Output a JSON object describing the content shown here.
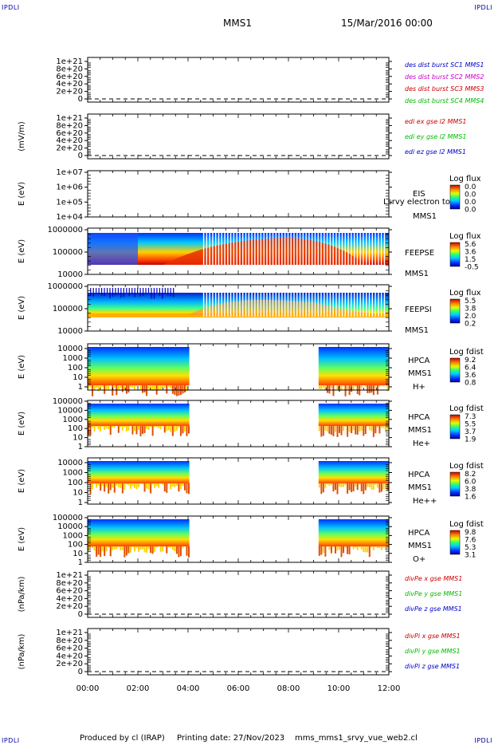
{
  "corner_tag": "IPDLI",
  "header": {
    "spacecraft": "MMS1",
    "datetime": "15/Mar/2016 00:00"
  },
  "footer": {
    "produced_by": "Produced by cl (IRAP)",
    "printing_date": "Printing date: 27/Nov/2023",
    "script_name": "mms_mms1_srvy_vue_web2.cl"
  },
  "chart_data": [
    {
      "type": "line",
      "panel_id": "des-dist-burst",
      "ylabel": "",
      "ylim": [
        0,
        1e+21
      ],
      "tick_labels": [
        "0",
        "2e+20",
        "4e+20",
        "6e+20",
        "8e+20",
        "1e+21"
      ],
      "dashed_baseline": 0,
      "series": [
        {
          "name": "des dist burst SC1 MMS1",
          "color": "#0000cc",
          "values": []
        },
        {
          "name": "des dist burst SC2 MMS2",
          "color": "#cc00cc",
          "values": []
        },
        {
          "name": "des dist burst SC3 MMS3",
          "color": "#cc0000",
          "values": []
        },
        {
          "name": "des dist burst SC4 MMS4",
          "color": "#00bb00",
          "values": []
        }
      ]
    },
    {
      "type": "line",
      "panel_id": "edi-e-gse",
      "ylabel": "(mV/m)",
      "ylim": [
        0,
        1e+21
      ],
      "tick_labels": [
        "0",
        "2e+20",
        "4e+20",
        "6e+20",
        "8e+20",
        "1e+21"
      ],
      "dashed_baseline": 0,
      "series": [
        {
          "name": "edi ex gse l2 MMS1",
          "color": "#cc0000",
          "values": []
        },
        {
          "name": "edi ey gse l2 MMS1",
          "color": "#00bb00",
          "values": []
        },
        {
          "name": "edi ez gse l2 MMS1",
          "color": "#0000cc",
          "values": []
        }
      ]
    },
    {
      "type": "heatmap",
      "panel_id": "eis",
      "ylabel": "E (eV)",
      "scale": "log",
      "tick_labels": [
        "1e+04",
        "1e+05",
        "1e+06",
        "1e+07"
      ],
      "instrument": [
        "EIS",
        "MMS1"
      ],
      "overlay_text": "Lsrvy electron to",
      "colorbar": {
        "title": "Log flux",
        "labels": [
          "0.0",
          "0.0",
          "0.0",
          "0.0"
        ]
      }
    },
    {
      "type": "heatmap",
      "panel_id": "feeps-electron",
      "ylabel": "E (eV)",
      "scale": "log",
      "tick_labels": [
        "10000",
        "100000",
        "1000000"
      ],
      "instrument": [
        "FEEPSE",
        "MMS1"
      ],
      "colorbar": {
        "title": "Log flux",
        "labels": [
          "5.6",
          "3.6",
          "1.5",
          "-0.5"
        ]
      }
    },
    {
      "type": "heatmap",
      "panel_id": "feeps-ion",
      "ylabel": "E (eV)",
      "scale": "log",
      "tick_labels": [
        "10000",
        "100000",
        "1000000"
      ],
      "instrument": [
        "FEEPSI",
        "MMS1"
      ],
      "colorbar": {
        "title": "Log flux",
        "labels": [
          "5.5",
          "3.8",
          "2.0",
          "0.2"
        ]
      }
    },
    {
      "type": "heatmap",
      "panel_id": "hpca-h",
      "ylabel": "E (eV)",
      "scale": "log",
      "tick_labels": [
        "1",
        "10",
        "100",
        "1000",
        "10000"
      ],
      "instrument": [
        "HPCA",
        "MMS1",
        "H+"
      ],
      "data_coverage_hours": [
        [
          0,
          4.05
        ],
        [
          9.2,
          12
        ]
      ],
      "colorbar": {
        "title": "Log fdist",
        "labels": [
          "9.2",
          "6.4",
          "3.6",
          "0.8"
        ]
      }
    },
    {
      "type": "heatmap",
      "panel_id": "hpca-he",
      "ylabel": "E (eV)",
      "scale": "log",
      "tick_labels": [
        "1",
        "10",
        "100",
        "1000",
        "10000",
        "100000"
      ],
      "instrument": [
        "HPCA",
        "MMS1",
        "He+"
      ],
      "data_coverage_hours": [
        [
          0,
          4.05
        ],
        [
          9.2,
          12
        ]
      ],
      "colorbar": {
        "title": "Log fdist",
        "labels": [
          "7.3",
          "5.5",
          "3.7",
          "1.9"
        ]
      }
    },
    {
      "type": "heatmap",
      "panel_id": "hpca-he2",
      "ylabel": "E (eV)",
      "scale": "log",
      "tick_labels": [
        "1",
        "10",
        "100",
        "1000",
        "10000"
      ],
      "instrument": [
        "HPCA",
        "MMS1",
        "He++"
      ],
      "data_coverage_hours": [
        [
          0,
          4.05
        ],
        [
          9.2,
          12
        ]
      ],
      "colorbar": {
        "title": "Log fdist",
        "labels": [
          "8.2",
          "6.0",
          "3.8",
          "1.6"
        ]
      }
    },
    {
      "type": "heatmap",
      "panel_id": "hpca-o",
      "ylabel": "E (eV)",
      "scale": "log",
      "tick_labels": [
        "1",
        "10",
        "100",
        "1000",
        "10000",
        "100000"
      ],
      "instrument": [
        "HPCA",
        "MMS1",
        "O+"
      ],
      "data_coverage_hours": [
        [
          0,
          4.05
        ],
        [
          9.2,
          12
        ]
      ],
      "colorbar": {
        "title": "Log fdist",
        "labels": [
          "9.8",
          "7.6",
          "5.3",
          "3.1"
        ]
      }
    },
    {
      "type": "line",
      "panel_id": "divpe",
      "ylabel": "(nPa/km)",
      "ylim": [
        0,
        1e+21
      ],
      "tick_labels": [
        "0",
        "2e+20",
        "4e+20",
        "6e+20",
        "8e+20",
        "1e+21"
      ],
      "dashed_baseline": 0,
      "series": [
        {
          "name": "divPe x gse MMS1",
          "color": "#cc0000",
          "values": []
        },
        {
          "name": "divPe y gse MMS1",
          "color": "#00bb00",
          "values": []
        },
        {
          "name": "divPe z gse MMS1",
          "color": "#0000cc",
          "values": []
        }
      ]
    },
    {
      "type": "line",
      "panel_id": "divpi",
      "ylabel": "(nPa/km)",
      "ylim": [
        0,
        1e+21
      ],
      "tick_labels": [
        "0",
        "2e+20",
        "4e+20",
        "6e+20",
        "8e+20",
        "1e+21"
      ],
      "dashed_baseline": 0,
      "series": [
        {
          "name": "divPi x gse MMS1",
          "color": "#cc0000",
          "values": []
        },
        {
          "name": "divPi y gse MMS1",
          "color": "#00bb00",
          "values": []
        },
        {
          "name": "divPi z gse MMS1",
          "color": "#0000cc",
          "values": []
        }
      ]
    }
  ],
  "time_axis": {
    "labels": [
      "00:00",
      "02:00",
      "04:00",
      "06:00",
      "08:00",
      "10:00",
      "12:00"
    ],
    "range_hours": [
      0,
      12
    ]
  }
}
